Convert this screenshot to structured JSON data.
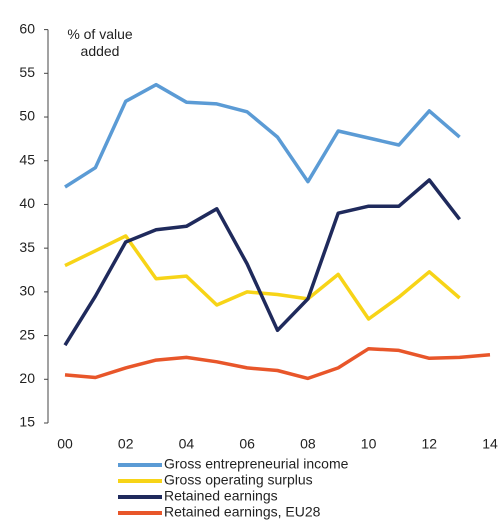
{
  "chart_data": {
    "type": "line",
    "ylabel": "% of value added",
    "categories": [
      "00",
      null,
      "02",
      null,
      "04",
      null,
      "06",
      null,
      "08",
      null,
      "10",
      null,
      "12",
      null,
      "14"
    ],
    "series": [
      {
        "name": "Gross entrepreneurial income",
        "color": "#5b9bd5",
        "values": [
          42.0,
          44.2,
          51.8,
          53.7,
          51.7,
          51.5,
          50.6,
          47.7,
          42.6,
          48.4,
          47.6,
          46.8,
          50.7,
          47.7,
          null
        ]
      },
      {
        "name": "Gross operating surplus",
        "color": "#f7d417",
        "values": [
          33.0,
          34.7,
          36.4,
          31.5,
          31.8,
          28.5,
          30.0,
          29.7,
          29.2,
          32.0,
          26.9,
          29.4,
          32.3,
          29.3,
          null
        ]
      },
      {
        "name": "Retained earnings",
        "color": "#1f2a5c",
        "values": [
          23.9,
          29.5,
          35.7,
          37.1,
          37.5,
          39.5,
          33.2,
          25.6,
          29.2,
          39.0,
          39.8,
          39.8,
          42.8,
          38.3,
          null
        ]
      },
      {
        "name": "Retained earnings, EU28",
        "color": "#e8562a",
        "values": [
          20.5,
          20.2,
          21.3,
          22.2,
          22.5,
          22.0,
          21.3,
          21.0,
          20.1,
          21.3,
          23.5,
          23.3,
          22.4,
          22.5,
          22.8
        ]
      }
    ],
    "ylim": [
      15,
      60
    ],
    "yticks": [
      15,
      20,
      25,
      30,
      35,
      40,
      45,
      50,
      55,
      60
    ],
    "grid": false
  }
}
